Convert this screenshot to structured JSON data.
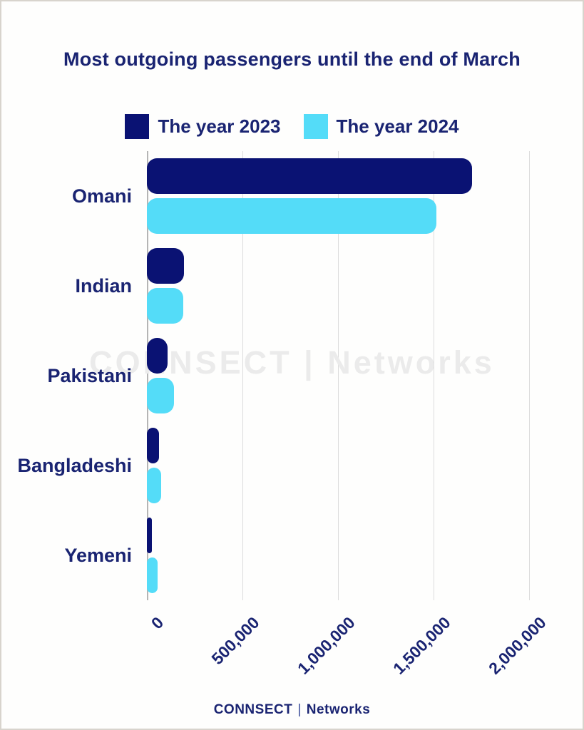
{
  "title": "Most outgoing passengers until the end of March",
  "watermark": "CONNSECT | Networks",
  "footer": {
    "brand": "CONNSECT",
    "separator": "|",
    "name": "Networks"
  },
  "colors": {
    "navy": "#0a1273",
    "cyan": "#54dcf8",
    "text_navy": "#1a2472",
    "gridline": "#dcdcdc",
    "watermark_gray": "#ebebeb"
  },
  "chart_data": {
    "type": "bar",
    "orientation": "horizontal",
    "title": "Most outgoing passengers until the end of March",
    "categories": [
      "Omani",
      "Indian",
      "Pakistani",
      "Bangladeshi",
      "Yemeni"
    ],
    "series": [
      {
        "name": "The year 2023",
        "color": "#0a1273",
        "values": [
          1700000,
          195000,
          110000,
          65000,
          25000
        ]
      },
      {
        "name": "The year 2024",
        "color": "#54dcf8",
        "values": [
          1515000,
          190000,
          140000,
          75000,
          55000
        ]
      }
    ],
    "x_ticks": [
      "0",
      "500,000",
      "1,000,000",
      "1,500,000",
      "2,000,000"
    ],
    "x_tick_values": [
      0,
      500000,
      1000000,
      1500000,
      2000000
    ],
    "xlim": [
      0,
      2153000
    ],
    "grid": true,
    "legend_position": "top",
    "xlabel": "",
    "ylabel": ""
  }
}
